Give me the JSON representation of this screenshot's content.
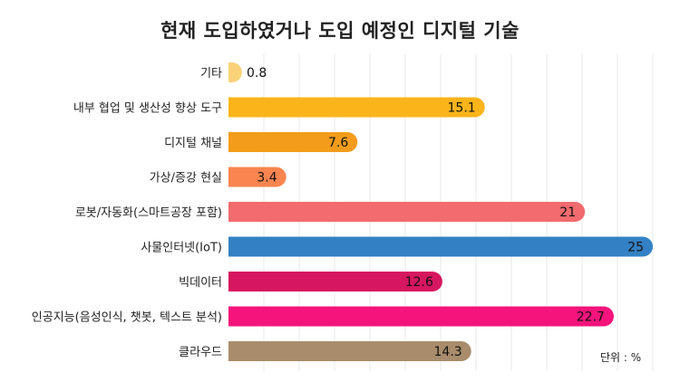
{
  "chart_data": {
    "type": "bar",
    "orientation": "horizontal",
    "title": "현재 도입하였거나 도입 예정인 디지털 기술",
    "unit_label": "단위 : %",
    "xlim": [
      0,
      25
    ],
    "grid": true,
    "categories": [
      "기타",
      "내부 협업 및 생산성 향상 도구",
      "디지털 채널",
      "가상/증강 현실",
      "로봇/자동화(스마트공장 포함)",
      "사물인터넷(IoT)",
      "빅데이터",
      "인공지능(음성인식, 챗봇, 텍스트 분석)",
      "클라우드"
    ],
    "values": [
      0.8,
      15.1,
      7.6,
      3.4,
      21,
      25,
      12.6,
      22.7,
      14.3
    ],
    "value_labels": [
      "0.8",
      "15.1",
      "7.6",
      "3.4",
      "21",
      "25",
      "12.6",
      "22.7",
      "14.3"
    ],
    "colors": [
      "#F9D27A",
      "#FBB419",
      "#F39C1B",
      "#FB8550",
      "#F26B6E",
      "#3381C4",
      "#D6175F",
      "#F5147B",
      "#A88C6C"
    ]
  }
}
